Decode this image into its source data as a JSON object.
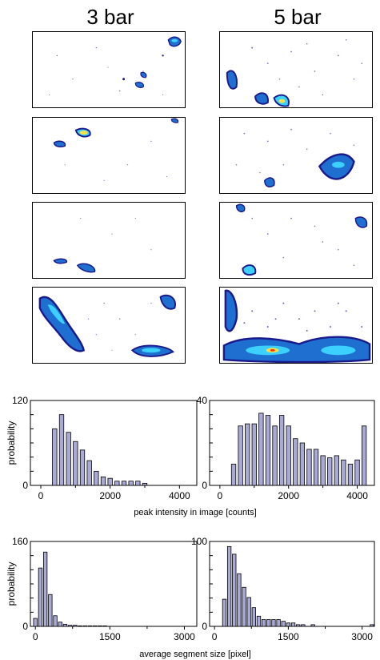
{
  "columns": [
    "3 bar",
    "5 bar"
  ],
  "colors": {
    "bar_fill": "#a9a9d6",
    "bar_stroke": "#000000",
    "hot": "#ff3020",
    "warm": "#ffe040",
    "cool": "#3cd0ff",
    "mid": "#1f6fd0",
    "deep": "#1a1a8c"
  },
  "chart_data": [
    {
      "type": "bar",
      "row": "peak",
      "condition": "3 bar",
      "x": [
        0,
        200,
        400,
        600,
        800,
        1000,
        1200,
        1400,
        1600,
        1800,
        2000,
        2200,
        2400,
        2600,
        2800,
        3000,
        3200,
        3400,
        3600,
        3800,
        4000,
        4200
      ],
      "values": [
        0,
        0,
        80,
        100,
        75,
        62,
        50,
        35,
        20,
        12,
        10,
        6,
        6,
        6,
        6,
        3,
        0,
        0,
        0,
        0,
        0,
        0
      ],
      "xlim": [
        -300,
        4500
      ],
      "ylim": [
        0,
        120
      ],
      "xticks": [
        "0",
        "2000",
        "4000"
      ],
      "xtick_values": [
        0,
        2000,
        4000
      ],
      "yticks": [
        "0",
        "120"
      ],
      "ytick_values": [
        0,
        120
      ],
      "ylabel": "probability",
      "xlabel": ""
    },
    {
      "type": "bar",
      "row": "peak",
      "condition": "5 bar",
      "x": [
        0,
        200,
        400,
        600,
        800,
        1000,
        1200,
        1400,
        1600,
        1800,
        2000,
        2200,
        2400,
        2600,
        2800,
        3000,
        3200,
        3400,
        3600,
        3800,
        4000,
        4200
      ],
      "values": [
        0,
        0,
        10,
        28,
        29,
        29,
        34,
        33,
        28,
        33,
        28,
        22,
        20,
        17,
        17,
        14,
        13,
        14,
        12,
        10,
        12,
        28
      ],
      "xlim": [
        -300,
        4500
      ],
      "ylim": [
        0,
        40
      ],
      "xticks": [
        "0",
        "2000",
        "4000"
      ],
      "xtick_values": [
        0,
        2000,
        4000
      ],
      "yticks": [
        "0",
        "40"
      ],
      "ytick_values": [
        0,
        40
      ],
      "ylabel": "",
      "xlabel": ""
    },
    {
      "type": "bar",
      "row": "size",
      "condition": "3 bar",
      "x": [
        0,
        100,
        200,
        300,
        400,
        500,
        600,
        700,
        800,
        900,
        1000,
        1100,
        1200,
        1300,
        1400,
        1500,
        1600,
        1700,
        1800,
        1900,
        2000,
        2100,
        2200,
        2300,
        2400,
        2500,
        2600,
        2700,
        2800,
        2900,
        3000,
        3100,
        3200
      ],
      "values": [
        15,
        110,
        140,
        60,
        20,
        8,
        4,
        2,
        2,
        1,
        1,
        1,
        1,
        1,
        1,
        0,
        0,
        0,
        0,
        0,
        0,
        0,
        0,
        0,
        0,
        0,
        0,
        0,
        0,
        0,
        0,
        0,
        0
      ],
      "xlim": [
        -100,
        3250
      ],
      "ylim": [
        0,
        160
      ],
      "xticks": [
        "0",
        "1500",
        "3000"
      ],
      "xtick_values": [
        0,
        1500,
        3000
      ],
      "yticks": [
        "0",
        "160"
      ],
      "ytick_values": [
        0,
        160
      ],
      "ylabel": "probability",
      "xlabel": ""
    },
    {
      "type": "bar",
      "row": "size",
      "condition": "5 bar",
      "x": [
        0,
        100,
        200,
        300,
        400,
        500,
        600,
        700,
        800,
        900,
        1000,
        1100,
        1200,
        1300,
        1400,
        1500,
        1600,
        1700,
        1800,
        1900,
        2000,
        2100,
        2200,
        2300,
        2400,
        2500,
        2600,
        2700,
        2800,
        2900,
        3000,
        3100,
        3200
      ],
      "values": [
        0,
        0,
        32,
        94,
        85,
        62,
        46,
        34,
        22,
        12,
        8,
        8,
        8,
        8,
        6,
        4,
        4,
        2,
        2,
        0,
        2,
        0,
        0,
        0,
        0,
        0,
        0,
        0,
        0,
        0,
        0,
        0,
        2
      ],
      "xlim": [
        -100,
        3250
      ],
      "ylim": [
        0,
        100
      ],
      "xticks": [
        "0",
        "1500",
        "3000"
      ],
      "xtick_values": [
        0,
        1500,
        3000
      ],
      "yticks": [
        "0",
        "100"
      ],
      "ytick_values": [
        0,
        100
      ],
      "ylabel": "",
      "xlabel": ""
    }
  ],
  "xlabels": {
    "peak": "peak intensity in image [counts]",
    "size": "average segment size [pixel]"
  }
}
